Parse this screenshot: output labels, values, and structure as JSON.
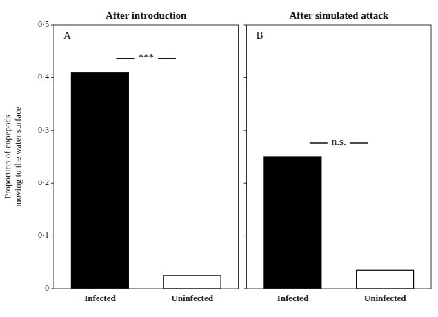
{
  "chart_data": [
    {
      "type": "bar",
      "title": "After introduction",
      "panel_label": "A",
      "annotation": "***",
      "categories": [
        "Infected",
        "Uninfected"
      ],
      "values": [
        0.41,
        0.025
      ],
      "colors": [
        "black",
        "white"
      ],
      "y_label": "Proportion of copepods\nmoving to the water surface",
      "ylim": [
        0,
        0.5
      ],
      "yticks": [
        0,
        {
          "value": 0.1,
          "label": "0·1"
        },
        {
          "value": 0.2,
          "label": "0·2"
        },
        {
          "value": 0.3,
          "label": "0·3"
        },
        {
          "value": 0.4,
          "label": "0·4"
        },
        {
          "value": 0.5,
          "label": "0·5"
        }
      ],
      "grid": false
    },
    {
      "type": "bar",
      "title": "After simulated attack",
      "panel_label": "B",
      "annotation": "n.s.",
      "categories": [
        "Infected",
        "Uninfected"
      ],
      "values": [
        0.25,
        0.035
      ],
      "colors": [
        "black",
        "white"
      ],
      "ylim": [
        0,
        0.5
      ],
      "yticks": [
        0,
        0.1,
        0.2,
        0.3,
        0.4,
        0.5
      ],
      "tick_labels": "x",
      "grid": false
    }
  ]
}
